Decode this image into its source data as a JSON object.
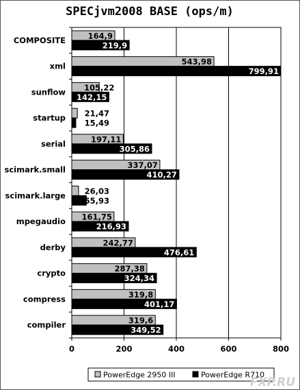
{
  "chart_data": {
    "type": "bar",
    "orientation": "horizontal",
    "title": "SPECjvm2008 BASE (ops/m)",
    "categories": [
      "COMPOSITE",
      "xml",
      "sunflow",
      "startup",
      "serial",
      "scimark.small",
      "scimark.large",
      "mpegaudio",
      "derby",
      "crypto",
      "compress",
      "compiler"
    ],
    "series": [
      {
        "name": "PowerEdge 2950 III",
        "color": "#c0c0c0",
        "values": [
          164.9,
          543.98,
          105.22,
          21.47,
          197.11,
          337.07,
          26.03,
          161.75,
          242.77,
          287.38,
          319.8,
          319.6
        ],
        "labels": [
          "164,9",
          "543,98",
          "105,22",
          "21,47",
          "197,11",
          "337,07",
          "26,03",
          "161,75",
          "242,77",
          "287,38",
          "319,8",
          "319,6"
        ]
      },
      {
        "name": "PowerEdge R710",
        "color": "#000000",
        "values": [
          219.9,
          799.91,
          142.15,
          15.49,
          305.86,
          410.27,
          55.93,
          216.93,
          476.61,
          324.34,
          401.17,
          349.52
        ],
        "labels": [
          "219,9",
          "799,91",
          "142,15",
          "15,49",
          "305,86",
          "410,27",
          "55,93",
          "216,93",
          "476,61",
          "324,34",
          "401,17",
          "349,52"
        ]
      }
    ],
    "xlim": [
      0,
      800
    ],
    "xticks": [
      0,
      200,
      400,
      600,
      800
    ],
    "grid": true,
    "legend_position": "bottom-right"
  },
  "watermark": "FXP.RU"
}
